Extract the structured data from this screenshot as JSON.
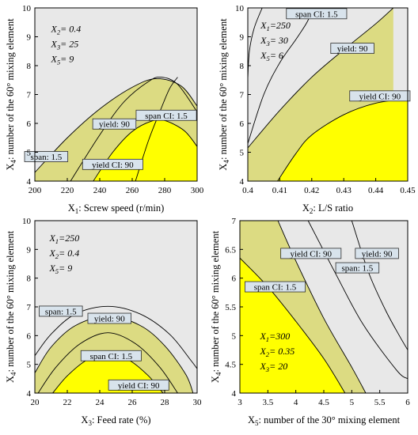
{
  "colors": {
    "background_region": "#e8e8e8",
    "yield_region": "#dcdb82",
    "optimum_region": "#ffff00",
    "contour_line": "#000000",
    "label_box_fill": "#d8e3ec",
    "label_box_stroke": "#2b2b2b"
  },
  "chart_data": [
    {
      "type": "contour",
      "panel": "top-left",
      "xlabel": "X1: Screw speed (r/min)",
      "ylabel": "X4: number of the 60° mixing element",
      "xlim": [
        200,
        300
      ],
      "ylim": [
        4,
        10
      ],
      "xticks": [
        "200",
        "220",
        "240",
        "260",
        "280",
        "300"
      ],
      "yticks": [
        "4",
        "5",
        "6",
        "7",
        "8",
        "9",
        "10"
      ],
      "conditions": [
        "X2= 0.4",
        "X3= 25",
        "X5= 9"
      ],
      "contour_labels": [
        {
          "text": "span: 1.5",
          "x": 207,
          "y": 4.85
        },
        {
          "text": "yield: 90",
          "x": 249,
          "y": 5.98
        },
        {
          "text": "span CI:  1.5",
          "x": 281,
          "y": 6.28
        },
        {
          "text": "yield CI:  90",
          "x": 248,
          "y": 4.58
        }
      ],
      "contours": [
        {
          "name": "yield: 90",
          "points": [
            [
              222,
              4.0
            ],
            [
              240,
              5.6
            ],
            [
              255,
              6.75
            ],
            [
              270,
              7.45
            ],
            [
              278,
              7.6
            ],
            [
              288,
              7.35
            ],
            [
              300,
              6.4
            ]
          ]
        },
        {
          "name": "span: 1.5",
          "points": [
            [
              200,
              4.3
            ],
            [
              220,
              5.5
            ],
            [
              240,
              6.5
            ],
            [
              260,
              7.25
            ],
            [
              275,
              7.55
            ],
            [
              290,
              7.3
            ],
            [
              300,
              6.6
            ]
          ]
        },
        {
          "name": "yield CI: 90",
          "points": [
            [
              236,
              4.0
            ],
            [
              248,
              5.0
            ],
            [
              260,
              5.72
            ],
            [
              272,
              6.08
            ],
            [
              280,
              6.1
            ],
            [
              292,
              5.75
            ],
            [
              300,
              5.2
            ]
          ]
        },
        {
          "name": "span CI: 1.5",
          "points": [
            [
              262,
              4.0
            ],
            [
              270,
              5.4
            ],
            [
              277,
              6.4
            ],
            [
              283,
              7.2
            ],
            [
              288,
              7.6
            ]
          ]
        }
      ]
    },
    {
      "type": "contour",
      "panel": "top-right",
      "xlabel": "X2: L/S ratio",
      "ylabel": "X4: number of the 60° mixing element",
      "xlim": [
        0.4,
        0.45
      ],
      "ylim": [
        4,
        10
      ],
      "xticks": [
        "0.4",
        "0.41",
        "0.42",
        "0.43",
        "0.44",
        "0.45"
      ],
      "yticks": [
        "4",
        "5",
        "6",
        "7",
        "8",
        "9",
        "10"
      ],
      "conditions": [
        "X1=250",
        "X3= 30",
        "X5= 6"
      ],
      "contour_labels": [
        {
          "text": "span CI:  1.5",
          "x": 0.4215,
          "y": 9.8
        },
        {
          "text": "yield: 90",
          "x": 0.4327,
          "y": 8.6
        },
        {
          "text": "yield CI:  90",
          "x": 0.4413,
          "y": 6.95
        }
      ],
      "contours": [
        {
          "name": "span: 1.5",
          "points": [
            [
              0.4,
              7.55
            ],
            [
              0.4005,
              8.5
            ],
            [
              0.402,
              9.3
            ],
            [
              0.4045,
              10.0
            ]
          ]
        },
        {
          "name": "span CI: 1.5",
          "points": [
            [
              0.4,
              5.3
            ],
            [
              0.405,
              7.0
            ],
            [
              0.41,
              8.1
            ],
            [
              0.415,
              8.9
            ],
            [
              0.4185,
              9.5
            ],
            [
              0.4205,
              10.0
            ]
          ]
        },
        {
          "name": "yield: 90",
          "points": [
            [
              0.4,
              5.15
            ],
            [
              0.41,
              6.45
            ],
            [
              0.42,
              7.6
            ],
            [
              0.43,
              8.55
            ],
            [
              0.44,
              9.45
            ],
            [
              0.4455,
              10.0
            ]
          ]
        },
        {
          "name": "yield CI: 90",
          "points": [
            [
              0.4093,
              4.0
            ],
            [
              0.415,
              4.95
            ],
            [
              0.42,
              5.6
            ],
            [
              0.43,
              6.3
            ],
            [
              0.44,
              6.7
            ],
            [
              0.45,
              6.85
            ]
          ]
        }
      ]
    },
    {
      "type": "contour",
      "panel": "bottom-left",
      "xlabel": "X3: Feed rate (%)",
      "ylabel": "X4: number of the 60° mixing element",
      "xlim": [
        20,
        30
      ],
      "ylim": [
        4,
        10
      ],
      "xticks": [
        "20",
        "22",
        "24",
        "26",
        "28",
        "30"
      ],
      "yticks": [
        "4",
        "5",
        "6",
        "7",
        "8",
        "9",
        "10"
      ],
      "conditions": [
        "X1=250",
        "X2= 0.4",
        "X5= 9"
      ],
      "contour_labels": [
        {
          "text": "span: 1.5",
          "x": 21.6,
          "y": 6.85
        },
        {
          "text": "yield: 90",
          "x": 24.6,
          "y": 6.6
        },
        {
          "text": "span CI:  1.5",
          "x": 24.7,
          "y": 5.3
        },
        {
          "text": "yield CI:  90",
          "x": 26.4,
          "y": 4.28
        }
      ],
      "contours": [
        {
          "name": "span: 1.5",
          "points": [
            [
              20,
              5.3
            ],
            [
              21,
              6.05
            ],
            [
              22.5,
              6.75
            ],
            [
              24.5,
              7.02
            ],
            [
              26.5,
              6.75
            ],
            [
              28.3,
              6.05
            ],
            [
              29.6,
              5.15
            ],
            [
              30,
              4.85
            ]
          ]
        },
        {
          "name": "yield: 90",
          "points": [
            [
              20,
              4.7
            ],
            [
              21,
              5.6
            ],
            [
              22.5,
              6.35
            ],
            [
              24.5,
              6.68
            ],
            [
              26.5,
              6.35
            ],
            [
              28,
              5.65
            ],
            [
              29.3,
              4.65
            ],
            [
              29.75,
              4.0
            ]
          ]
        },
        {
          "name": "yield CI: 90",
          "points": [
            [
              21.1,
              4.0
            ],
            [
              22,
              4.6
            ],
            [
              23.2,
              5.15
            ],
            [
              24.5,
              5.4
            ],
            [
              25.8,
              5.15
            ],
            [
              27,
              4.6
            ],
            [
              27.9,
              4.0
            ]
          ]
        },
        {
          "name": "span CI: 1.5",
          "points": [
            [
              20.2,
              4.0
            ],
            [
              21.3,
              4.9
            ],
            [
              22.8,
              5.72
            ],
            [
              24.5,
              6.1
            ],
            [
              26.2,
              5.72
            ],
            [
              27.7,
              4.9
            ],
            [
              28.8,
              4.0
            ]
          ]
        }
      ]
    },
    {
      "type": "contour",
      "panel": "bottom-right",
      "xlabel": "X5: number of the 30° mixing element",
      "ylabel": "X4: number of the 60° mixing element",
      "xlim": [
        3,
        6
      ],
      "ylim": [
        4,
        7
      ],
      "xticks": [
        "3",
        "3.5",
        "4",
        "4.5",
        "5",
        "5.5",
        "6"
      ],
      "yticks": [
        "4",
        "4.5",
        "5",
        "5.5",
        "6",
        "6.5",
        "7"
      ],
      "conditions": [
        "X1=300",
        "X2= 0.35",
        "X3= 20"
      ],
      "contour_labels": [
        {
          "text": "yield CI:  90",
          "x": 4.27,
          "y": 6.43
        },
        {
          "text": "yield: 90",
          "x": 5.45,
          "y": 6.43
        },
        {
          "text": "span: 1.5",
          "x": 5.1,
          "y": 6.18
        },
        {
          "text": "span CI:  1.5",
          "x": 3.63,
          "y": 5.85
        }
      ],
      "contours": [
        {
          "name": "yield CI: 90",
          "points": [
            [
              3.0,
              6.35
            ],
            [
              3.5,
              5.85
            ],
            [
              4.0,
              5.25
            ],
            [
              4.5,
              4.6
            ],
            [
              4.88,
              4.0
            ]
          ]
        },
        {
          "name": "yield: 90",
          "points": [
            [
              3.68,
              7.0
            ],
            [
              4.0,
              6.3
            ],
            [
              4.5,
              5.3
            ],
            [
              5.0,
              4.45
            ],
            [
              5.25,
              4.0
            ]
          ]
        },
        {
          "name": "span CI: 1.5",
          "points": [
            [
              4.22,
              7.0
            ],
            [
              4.7,
              6.1
            ],
            [
              5.2,
              5.2
            ],
            [
              5.8,
              4.4
            ],
            [
              6.0,
              4.25
            ]
          ]
        },
        {
          "name": "span: 1.5",
          "points": [
            [
              5.0,
              7.0
            ],
            [
              5.3,
              6.1
            ],
            [
              5.6,
              5.45
            ],
            [
              5.85,
              5.0
            ],
            [
              6.0,
              4.75
            ]
          ]
        }
      ]
    }
  ]
}
